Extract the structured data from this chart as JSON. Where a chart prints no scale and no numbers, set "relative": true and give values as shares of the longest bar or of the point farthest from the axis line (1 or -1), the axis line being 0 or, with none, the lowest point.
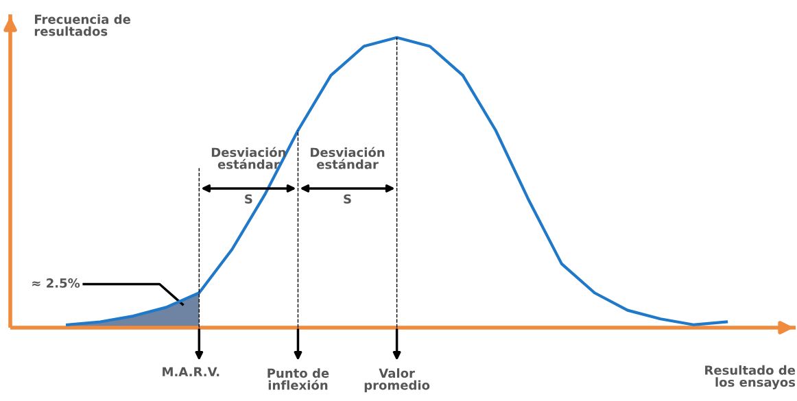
{
  "chart_data": {
    "type": "line",
    "relative": true,
    "xlabel": "Resultado de los ensayos",
    "ylabel": "Frecuencia de resultados",
    "categories": [
      null,
      null,
      null,
      null,
      null,
      null,
      null,
      null,
      null,
      null,
      null,
      null,
      null,
      null,
      null,
      null,
      null,
      null,
      null,
      null,
      null
    ],
    "series": [
      {
        "color": "#1f78c8",
        "values": [
          0.01,
          0.02,
          0.04,
          0.07,
          0.12,
          0.27,
          0.46,
          0.68,
          0.87,
          0.97,
          1.0,
          0.97,
          0.87,
          0.68,
          0.44,
          0.22,
          0.12,
          0.06,
          0.03,
          0.01,
          0.02
        ]
      },
      {
        "type": "area",
        "color": "#6f84a3",
        "values": [
          0.01,
          0.02,
          0.04,
          0.07,
          0.12,
          null,
          null,
          null,
          null,
          null,
          null,
          null,
          null,
          null,
          null,
          null,
          null,
          null,
          null,
          null,
          null
        ]
      }
    ],
    "annotations": [
      "Desviación estándar",
      "Desviación estándar",
      "S",
      "S",
      "≈ 2.5%",
      "M.A.R.V.",
      "Punto de inflexión",
      "Valor promedio"
    ]
  }
}
